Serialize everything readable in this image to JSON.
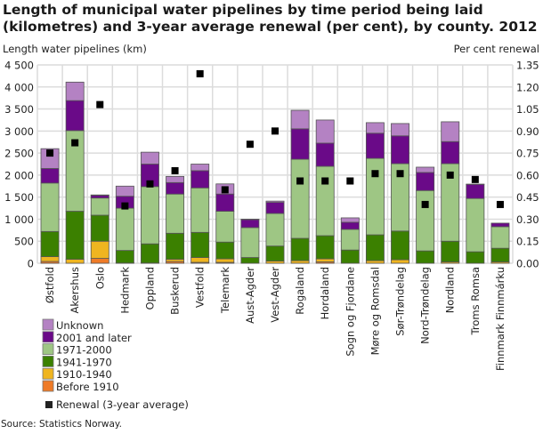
{
  "chart_data": {
    "type": "bar",
    "stacked": true,
    "title": "Length of municipal water pipelines by time period being laid (kilometres) and 3-year average renewal (per cent), by county. 2012",
    "ylabel": "Length water pipelines (km)",
    "y2label": "Per cent renewal",
    "ylim": [
      0,
      4500
    ],
    "y2lim": [
      0,
      1.35
    ],
    "yticks": [
      "0",
      "500",
      "1 000",
      "1 500",
      "2 000",
      "2 500",
      "3 000",
      "3 500",
      "4 000",
      "4 500"
    ],
    "y2ticks": [
      "0.00",
      "0.15",
      "0.30",
      "0.45",
      "0.60",
      "0.75",
      "0.90",
      "1.05",
      "1.20",
      "1.35"
    ],
    "grid": true,
    "legend_placement": "bottom-left",
    "categories": [
      "Østfold",
      "Akershus",
      "Oslo",
      "Hedmark",
      "Oppland",
      "Buskerud",
      "Vestfold",
      "Telemark",
      "Aust-Agder",
      "Vest-Agder",
      "Rogaland",
      "Hordaland",
      "Sogn og Fjordane",
      "Møre og Romsdal",
      "Sør-Trøndelag",
      "Nord-Trøndelag",
      "Nordland",
      "Troms Romsa",
      "Finnmark Finnmárku"
    ],
    "series": [
      {
        "name": "Before 1910",
        "color": "#ef7b27",
        "values": [
          40,
          0,
          110,
          0,
          0,
          40,
          20,
          20,
          0,
          0,
          0,
          30,
          0,
          0,
          0,
          0,
          0,
          0,
          0
        ]
      },
      {
        "name": "1910-1940",
        "color": "#efb520",
        "values": [
          110,
          90,
          390,
          5,
          5,
          50,
          110,
          80,
          0,
          50,
          60,
          70,
          0,
          60,
          80,
          0,
          30,
          0,
          30
        ]
      },
      {
        "name": "1941-1970",
        "color": "#3b8000",
        "values": [
          570,
          1090,
          590,
          285,
          435,
          590,
          570,
          380,
          130,
          340,
          505,
          525,
          300,
          585,
          650,
          280,
          470,
          260,
          310
        ]
      },
      {
        "name": "1971-2000",
        "color": "#9ec684",
        "values": [
          1100,
          1830,
          390,
          960,
          1300,
          890,
          1010,
          700,
          680,
          740,
          1795,
          1575,
          470,
          1735,
          1530,
          1370,
          1760,
          1210,
          490
        ]
      },
      {
        "name": "2001 and later",
        "color": "#6a0a88",
        "values": [
          330,
          680,
          60,
          270,
          510,
          260,
          390,
          390,
          180,
          250,
          690,
          525,
          160,
          570,
          630,
          410,
          500,
          320,
          80
        ]
      },
      {
        "name": "Unknown",
        "color": "#b482c3",
        "values": [
          450,
          420,
          10,
          230,
          270,
          140,
          150,
          230,
          10,
          30,
          420,
          525,
          100,
          240,
          280,
          120,
          450,
          5,
          0
        ]
      }
    ],
    "line_series": {
      "name": "Renewal (3-year average)",
      "axis": "right",
      "marker": "square",
      "color": "#000000",
      "values": [
        0.75,
        0.82,
        1.08,
        0.39,
        0.54,
        0.63,
        1.29,
        0.5,
        0.81,
        0.9,
        0.56,
        0.56,
        0.56,
        0.61,
        0.61,
        0.4,
        0.6,
        0.57,
        0.4
      ]
    }
  },
  "legend_order": [
    "Unknown",
    "2001 and later",
    "1971-2000",
    "1941-1970",
    "1910-1940",
    "Before 1910"
  ],
  "source": "Source: Statistics Norway."
}
